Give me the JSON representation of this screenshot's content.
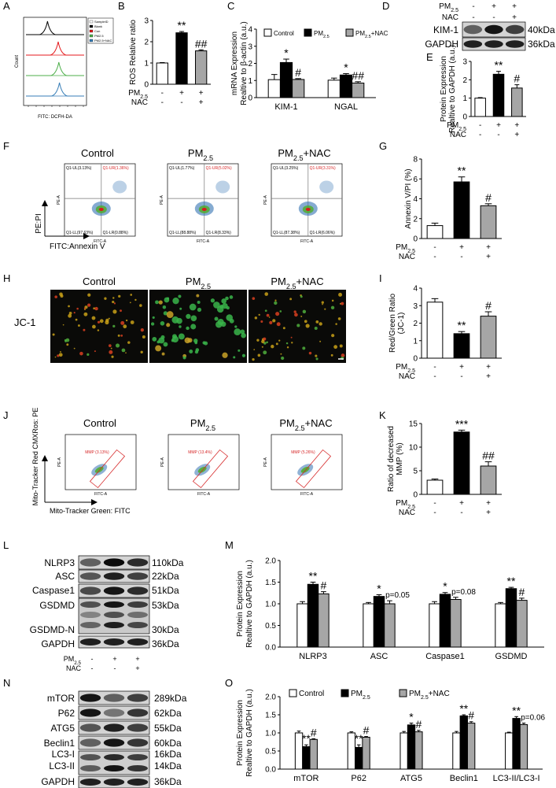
{
  "panels": {
    "A": {
      "letter": "A",
      "ylabel": "Count",
      "xlabel": "FITC: DCFH-DA",
      "legend": [
        "SampleID",
        "Blank",
        "Con",
        "PM2.5",
        "PM2.5+NAC"
      ],
      "colors": [
        "#000000",
        "#e41a1c",
        "#4daf4a",
        "#377eb8"
      ]
    },
    "B": {
      "letter": "B",
      "chart_data": {
        "type": "bar",
        "ylabel": "ROS Relative ratio",
        "ylim": [
          0,
          3
        ],
        "yticks": [
          "0",
          "1",
          "2",
          "3"
        ],
        "categories": [
          "Control",
          "PM2.5",
          "PM2.5+NAC"
        ],
        "values": [
          1.0,
          2.42,
          1.57
        ],
        "errors": [
          0.02,
          0.06,
          0.05
        ],
        "sig": [
          "",
          "**",
          "##"
        ],
        "treat": {
          "pm": [
            "-",
            "+",
            "+"
          ],
          "nac": [
            "-",
            "-",
            "+"
          ]
        }
      }
    },
    "C": {
      "letter": "C",
      "chart_data": {
        "type": "bar",
        "ylabel": "mRNA Expression",
        "ylabel2": "Realtive to β-actin (a.u.)",
        "ylim": [
          0,
          4
        ],
        "yticks": [
          "0",
          "1",
          "2",
          "3",
          "4"
        ],
        "categories": [
          "KIM-1",
          "NGAL"
        ],
        "series": [
          {
            "name": "Control",
            "values": [
              1.05,
              1.02
            ],
            "errors": [
              0.3,
              0.12
            ],
            "sig": [
              "",
              ""
            ]
          },
          {
            "name": "PM2.5",
            "values": [
              2.05,
              1.32
            ],
            "errors": [
              0.2,
              0.08
            ],
            "sig": [
              "*",
              "*"
            ]
          },
          {
            "name": "PM2.5+NAC",
            "values": [
              1.06,
              0.85
            ],
            "errors": [
              0.05,
              0.08
            ],
            "sig": [
              "#",
              "##"
            ]
          }
        ]
      }
    },
    "D": {
      "letter": "D",
      "pm_signs": [
        "-",
        "+",
        "+"
      ],
      "nac_signs": [
        "-",
        "-",
        "+"
      ],
      "bands": [
        {
          "name": "KIM-1",
          "kda": "40kDa"
        },
        {
          "name": "GAPDH",
          "kda": "36kDa"
        }
      ]
    },
    "E": {
      "letter": "E",
      "chart_data": {
        "type": "bar",
        "ylabel": "Protein Expression",
        "ylabel2": "Realtive to GAPDH (a.u.)",
        "ylim": [
          0,
          3
        ],
        "yticks": [
          "0",
          "1",
          "2",
          "3"
        ],
        "categories": [
          "Control",
          "PM2.5",
          "PM2.5+NAC"
        ],
        "values": [
          1.0,
          2.3,
          1.55
        ],
        "errors": [
          0.03,
          0.16,
          0.18
        ],
        "sig": [
          "",
          "**",
          "#"
        ],
        "treat": {
          "pm": [
            "-",
            "+",
            "+"
          ],
          "nac": [
            "-",
            "-",
            "+"
          ]
        }
      }
    },
    "F": {
      "letter": "F",
      "titles": [
        "Control",
        "PM2.5",
        "PM2.5+NAC"
      ],
      "yaxis": "PE:PI",
      "xaxis": "FITC:Annexin V",
      "plots": [
        {
          "ul": "Q1-UL(3.13%)",
          "ur": "Q1-UR(1.36%)",
          "ll": "Q1-LL(97.63%)",
          "lr": "Q1-LR(0.88%)"
        },
        {
          "ul": "Q1-UL(1.77%)",
          "ur": "Q1-UR(5.02%)",
          "ll": "Q1-LL(88.88%)",
          "lr": "Q1-LR(8.33%)"
        },
        {
          "ul": "Q1-UL(3.25%)",
          "ur": "Q1-UR(3.31%)",
          "ll": "Q1-LL(87.38%)",
          "lr": "Q1-LR(6.06%)"
        }
      ]
    },
    "G": {
      "letter": "G",
      "chart_data": {
        "type": "bar",
        "ylabel": "Annexin V/PI (%)",
        "ylim": [
          0,
          8
        ],
        "yticks": [
          "0",
          "2",
          "4",
          "6",
          "8"
        ],
        "categories": [
          "Control",
          "PM2.5",
          "PM2.5+NAC"
        ],
        "values": [
          1.3,
          5.7,
          3.3
        ],
        "errors": [
          0.25,
          0.5,
          0.2
        ],
        "sig": [
          "",
          "**",
          "#"
        ],
        "treat": {
          "pm": [
            "-",
            "+",
            "+"
          ],
          "nac": [
            "-",
            "-",
            "+"
          ]
        }
      }
    },
    "H": {
      "letter": "H",
      "row_label": "JC-1",
      "titles": [
        "Control",
        "PM2.5",
        "PM2.5+NAC"
      ]
    },
    "I": {
      "letter": "I",
      "chart_data": {
        "type": "bar",
        "ylabel": "Red/Green Ratio",
        "ylabel2": "(JC-1)",
        "ylim": [
          0,
          4
        ],
        "yticks": [
          "0",
          "1",
          "2",
          "3",
          "4"
        ],
        "categories": [
          "Control",
          "PM2.5",
          "PM2.5+NAC"
        ],
        "values": [
          3.2,
          1.4,
          2.4
        ],
        "errors": [
          0.2,
          0.12,
          0.25
        ],
        "sig": [
          "",
          "**",
          "#"
        ],
        "treat": {
          "pm": [
            "-",
            "+",
            "+"
          ],
          "nac": [
            "-",
            "-",
            "+"
          ]
        }
      }
    },
    "J": {
      "letter": "J",
      "titles": [
        "Control",
        "PM2.5",
        "PM2.5+NAC"
      ],
      "yaxis": "Mito-Tracker Red CMXRos: PE",
      "xaxis": "Mito-Tracker Green: FITC",
      "gates": [
        "MMP (3.13%)",
        "MMP (13.4%)",
        "MMP (5.26%)"
      ]
    },
    "K": {
      "letter": "K",
      "chart_data": {
        "type": "bar",
        "ylabel": "Ratio of decreased",
        "ylabel2": "MMP (%)",
        "ylim": [
          0,
          15
        ],
        "yticks": [
          "0",
          "5",
          "10",
          "15"
        ],
        "categories": [
          "Control",
          "PM2.5",
          "PM2.5+NAC"
        ],
        "values": [
          3.0,
          13.2,
          6.0
        ],
        "errors": [
          0.25,
          0.4,
          0.9
        ],
        "sig": [
          "",
          "***",
          "##"
        ],
        "treat": {
          "pm": [
            "-",
            "+",
            "+"
          ],
          "nac": [
            "-",
            "-",
            "+"
          ]
        }
      }
    },
    "L": {
      "letter": "L",
      "bands": [
        {
          "name": "NLRP3",
          "kda": "110kDa"
        },
        {
          "name": "ASC",
          "kda": "22kDa"
        },
        {
          "name": "Caspase1",
          "kda": "51kDa"
        },
        {
          "name": "GSDMD",
          "kda": "53kDa"
        },
        {
          "name": "GSDMD-N",
          "kda": "30kDa"
        },
        {
          "name": "GAPDH",
          "kda": "36kDa"
        }
      ],
      "pm_signs": [
        "-",
        "+",
        "+"
      ],
      "nac_signs": [
        "-",
        "-",
        "+"
      ]
    },
    "M": {
      "letter": "M",
      "chart_data": {
        "type": "bar",
        "ylabel": "Protein Expression",
        "ylabel2": "Realtive to GAPDH (a.u.)",
        "ylim": [
          0,
          2.0
        ],
        "yticks": [
          "0.0",
          "0.5",
          "1.0",
          "1.5",
          "2.0"
        ],
        "categories": [
          "NLRP3",
          "ASC",
          "Caspase1",
          "GSDMD"
        ],
        "series": [
          {
            "name": "Control",
            "values": [
              1.0,
              1.0,
              1.0,
              1.0
            ],
            "errors": [
              0.05,
              0.03,
              0.05,
              0.03
            ],
            "sig": [
              "",
              "",
              "",
              ""
            ]
          },
          {
            "name": "PM2.5",
            "values": [
              1.45,
              1.17,
              1.22,
              1.35
            ],
            "errors": [
              0.05,
              0.04,
              0.04,
              0.03
            ],
            "sig": [
              "**",
              "*",
              "*",
              "**"
            ]
          },
          {
            "name": "PM2.5+NAC",
            "values": [
              1.23,
              1.0,
              1.1,
              1.08
            ],
            "errors": [
              0.05,
              0.07,
              0.05,
              0.05
            ],
            "sig": [
              "#",
              "p=0.05",
              "p=0.08",
              "#"
            ]
          }
        ]
      }
    },
    "N": {
      "letter": "N",
      "bands": [
        {
          "name": "mTOR",
          "kda": "289kDa"
        },
        {
          "name": "P62",
          "kda": "62kDa"
        },
        {
          "name": "ATG5",
          "kda": "55kDa"
        },
        {
          "name": "Beclin1",
          "kda": "60kDa"
        },
        {
          "name": "LC3-I",
          "kda": "16kDa"
        },
        {
          "name": "LC3-II",
          "kda": "14kDa"
        },
        {
          "name": "GAPDH",
          "kda": "36kDa"
        }
      ],
      "pm_signs": [
        "-",
        "+",
        "+"
      ],
      "nac_signs": [
        "-",
        "-",
        "+"
      ]
    },
    "O": {
      "letter": "O",
      "chart_data": {
        "type": "bar",
        "ylabel": "Protein Expression",
        "ylabel2": "Realtive to GAPDH (a.u.)",
        "ylim": [
          0,
          2.0
        ],
        "yticks": [
          "0.0",
          "0.5",
          "1.0",
          "1.5",
          "2.0"
        ],
        "categories": [
          "mTOR",
          "P62",
          "ATG5",
          "Beclin1",
          "LC3-II/LC3-I"
        ],
        "series": [
          {
            "name": "Control",
            "values": [
              1.0,
              1.0,
              1.0,
              1.0,
              1.0
            ],
            "errors": [
              0.05,
              0.03,
              0.04,
              0.04,
              0.02
            ],
            "sig": [
              "",
              "",
              "",
              "",
              ""
            ]
          },
          {
            "name": "PM2.5",
            "values": [
              0.62,
              0.6,
              1.22,
              1.47,
              1.4
            ],
            "errors": [
              0.05,
              0.07,
              0.05,
              0.03,
              0.05
            ],
            "sig": [
              "**",
              "**",
              "*",
              "**",
              "**"
            ]
          },
          {
            "name": "PM2.5+NAC",
            "values": [
              0.82,
              0.88,
              1.03,
              1.27,
              1.23
            ],
            "errors": [
              0.02,
              0.02,
              0.04,
              0.04,
              0.04
            ],
            "sig": [
              "#",
              "#",
              "#",
              "#",
              "p=0.06"
            ]
          }
        ]
      }
    }
  },
  "common": {
    "pm": "PM",
    "pm_sub": "2.5",
    "nac": "NAC",
    "legend_control": "Control",
    "legend_pm": "PM",
    "legend_nac": "+NAC",
    "bar_colors": [
      "#ffffff",
      "#000000",
      "#a6a6a6"
    ]
  }
}
